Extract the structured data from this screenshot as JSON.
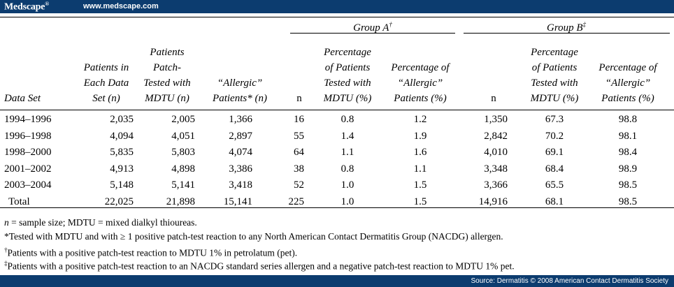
{
  "header": {
    "brand": "Medscape",
    "brand_mark": "®",
    "site": "www.medscape.com"
  },
  "table": {
    "group_a_label": "Group A",
    "group_a_mark": "†",
    "group_b_label": "Group B",
    "group_b_mark": "‡",
    "columns": {
      "data_set": "Data Set",
      "patients_each": [
        "Patients in",
        "Each Data",
        "Set (n)"
      ],
      "patients_mdtu": [
        "Patients",
        "Patch-",
        "Tested with",
        "MDTU (n)"
      ],
      "allergic": [
        "“Allergic”",
        "Patients* (n)"
      ],
      "a_n": "n",
      "a_pct_mdtu": [
        "Percentage",
        "of Patients",
        "Tested with",
        "MDTU (%)"
      ],
      "a_pct_allergic": [
        "Percentage of",
        "“Allergic”",
        "Patients (%)"
      ],
      "b_n": "n",
      "b_pct_mdtu": [
        "Percentage",
        "of Patients",
        "Tested with",
        "MDTU (%)"
      ],
      "b_pct_allergic": [
        "Percentage of",
        "“Allergic”",
        "Patients (%)"
      ]
    },
    "rows": [
      [
        "1994–1996",
        "2,035",
        "2,005",
        "1,366",
        "16",
        "0.8",
        "1.2",
        "1,350",
        "67.3",
        "98.8"
      ],
      [
        "1996–1998",
        "4,094",
        "4,051",
        "2,897",
        "55",
        "1.4",
        "1.9",
        "2,842",
        "70.2",
        "98.1"
      ],
      [
        "1998–2000",
        "5,835",
        "5,803",
        "4,074",
        "64",
        "1.1",
        "1.6",
        "4,010",
        "69.1",
        "98.4"
      ],
      [
        "2001–2002",
        "4,913",
        "4,898",
        "3,386",
        "38",
        "0.8",
        "1.1",
        "3,348",
        "68.4",
        "98.9"
      ],
      [
        "2003–2004",
        "5,148",
        "5,141",
        "3,418",
        "52",
        "1.0",
        "1.5",
        "3,366",
        "65.5",
        "98.5"
      ],
      [
        "Total",
        "22,025",
        "21,898",
        "15,141",
        "225",
        "1.0",
        "1.5",
        "14,916",
        "68.1",
        "98.5"
      ]
    ]
  },
  "footnotes": {
    "n_italic": "n",
    "n_rest": " = sample size; MDTU = mixed dialkyl thioureas.",
    "star": "*Tested with MDTU and with ≥ 1 positive patch-test reaction to any North American Contact Dermatitis Group (NACDG) allergen.",
    "dagger_mark": "†",
    "dagger": "Patients with a positive patch-test reaction to MDTU 1% in petrolatum (pet).",
    "ddagger_mark": "‡",
    "ddagger": "Patients with a positive patch-test reaction to an NACDG standard series allergen and a negative patch-test reaction to MDTU 1% pet."
  },
  "footer": {
    "source": "Source: Dermatitis © 2008 American Contact Dermatitis Society"
  }
}
